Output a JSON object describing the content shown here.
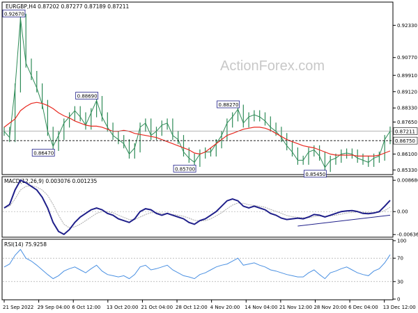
{
  "chart_data": [
    {
      "panel": "price",
      "type": "line",
      "title": "EURGBP,H4  0.87202 0.87277 0.87189 0.87211",
      "watermark": "ActionForex.com",
      "ylim": [
        0.8514,
        0.9342
      ],
      "y_ticks": [
        "0.92330",
        "0.90770",
        "0.89910",
        "0.89120",
        "0.88330",
        "0.87650",
        "0.86100",
        "0.85330"
      ],
      "current_price_label": "0.87211",
      "level_line_label": "0.86750",
      "annotations": [
        "0.92670",
        "0.88690",
        "0.86470",
        "0.85700",
        "0.88270",
        "0.85450"
      ],
      "x_tick_labels": [
        "21 Sep 2022",
        "29 Sep 04:00",
        "6 Oct 12:00",
        "13 Oct 20:00",
        "21 Oct 04:00",
        "28 Oct 12:00",
        "4 Nov 20:00",
        "14 Nov 04:00",
        "21 Nov 12:00",
        "28 Nov 20:00",
        "6 Dec 04:00",
        "13 Dec 12:00"
      ],
      "series": [
        {
          "name": "EURGBP,H4",
          "color": "#2e8b57",
          "style": "candles",
          "values": [
            0.872,
            0.869,
            0.893,
            0.9267,
            0.905,
            0.899,
            0.893,
            0.885,
            0.872,
            0.8647,
            0.87,
            0.876,
            0.879,
            0.882,
            0.879,
            0.875,
            0.881,
            0.8869,
            0.879,
            0.874,
            0.87,
            0.868,
            0.866,
            0.861,
            0.864,
            0.874,
            0.876,
            0.87,
            0.872,
            0.875,
            0.876,
            0.87,
            0.868,
            0.862,
            0.859,
            0.857,
            0.861,
            0.862,
            0.862,
            0.866,
            0.87,
            0.876,
            0.879,
            0.8827,
            0.876,
            0.879,
            0.88,
            0.879,
            0.877,
            0.874,
            0.872,
            0.869,
            0.865,
            0.862,
            0.858,
            0.858,
            0.862,
            0.863,
            0.86,
            0.8545,
            0.858,
            0.859,
            0.861,
            0.8615,
            0.861,
            0.859,
            0.858,
            0.857,
            0.859,
            0.86,
            0.868,
            0.8721
          ]
        },
        {
          "name": "moving average",
          "color": "#e8281f",
          "style": "line",
          "values": [
            0.874,
            0.876,
            0.878,
            0.882,
            0.884,
            0.8855,
            0.886,
            0.8855,
            0.8845,
            0.883,
            0.881,
            0.8795,
            0.8785,
            0.877,
            0.876,
            0.875,
            0.8745,
            0.8745,
            0.874,
            0.873,
            0.872,
            0.872,
            0.8725,
            0.872,
            0.871,
            0.8705,
            0.87,
            0.8695,
            0.869,
            0.868,
            0.867,
            0.866,
            0.865,
            0.864,
            0.863,
            0.8615,
            0.861,
            0.862,
            0.864,
            0.866,
            0.868,
            0.87,
            0.871,
            0.872,
            0.873,
            0.8735,
            0.874,
            0.874,
            0.8735,
            0.8725,
            0.871,
            0.8695,
            0.868,
            0.867,
            0.866,
            0.865,
            0.8645,
            0.864,
            0.863,
            0.862,
            0.861,
            0.8605,
            0.8605,
            0.8605,
            0.8605,
            0.86,
            0.86,
            0.86,
            0.86,
            0.8605,
            0.8615,
            0.8625
          ]
        }
      ]
    },
    {
      "panel": "macd",
      "type": "line",
      "title": "MACD(12,26,9) 0.003076 0.001235",
      "ylim": [
        -0.0069,
        0.0093
      ],
      "y_ticks": [
        "0.008686",
        "0.00",
        "-0.006366"
      ],
      "series": [
        {
          "name": "MACD",
          "color": "#1f1f8a",
          "values": [
            0.001,
            0.002,
            0.006,
            0.0087,
            0.008,
            0.007,
            0.006,
            0.004,
            0.001,
            -0.003,
            -0.0055,
            -0.0063,
            -0.005,
            -0.003,
            -0.0015,
            -0.0005,
            0.0005,
            0.001,
            0.0005,
            -0.0005,
            -0.001,
            -0.002,
            -0.0025,
            -0.003,
            -0.002,
            0.0,
            0.0008,
            0.0005,
            -0.0005,
            -0.001,
            -0.0005,
            -0.001,
            -0.0015,
            -0.002,
            -0.003,
            -0.0035,
            -0.0025,
            -0.002,
            -0.001,
            0.0,
            0.0015,
            0.003,
            0.0035,
            0.003,
            0.0015,
            0.001,
            0.0015,
            0.001,
            0.0005,
            -0.0005,
            -0.001,
            -0.0018,
            -0.0022,
            -0.002,
            -0.0018,
            -0.002,
            -0.0015,
            -0.0008,
            -0.001,
            -0.0015,
            -0.001,
            -0.0005,
            0.0,
            0.0002,
            0.0003,
            0.0,
            -0.0005,
            -0.0006,
            -0.0004,
            0.0,
            0.0015,
            0.0031
          ]
        },
        {
          "name": "Signal",
          "color": "#aaaaaa",
          "values": [
            0.001,
            0.0015,
            0.0035,
            0.006,
            0.007,
            0.0072,
            0.0068,
            0.006,
            0.0045,
            0.002,
            -0.001,
            -0.0035,
            -0.0045,
            -0.0042,
            -0.0035,
            -0.0025,
            -0.0015,
            -0.0005,
            0.0,
            0.0,
            -0.0003,
            -0.001,
            -0.0016,
            -0.0022,
            -0.0022,
            -0.0015,
            -0.0008,
            -0.0003,
            -0.0003,
            -0.0005,
            -0.0006,
            -0.0008,
            -0.001,
            -0.0013,
            -0.0018,
            -0.0024,
            -0.0026,
            -0.0025,
            -0.002,
            -0.0012,
            -0.0003,
            0.0008,
            0.0018,
            0.0024,
            0.0023,
            0.0019,
            0.0017,
            0.0015,
            0.0012,
            0.0006,
            0.0001,
            -0.0005,
            -0.0011,
            -0.0014,
            -0.0016,
            -0.0017,
            -0.0017,
            -0.0014,
            -0.0012,
            -0.0013,
            -0.0012,
            -0.001,
            -0.0007,
            -0.0004,
            -0.0002,
            -0.0001,
            -0.0002,
            -0.0003,
            -0.0003,
            -0.0002,
            0.0003,
            0.0012
          ]
        },
        {
          "name": "trendline",
          "color": "#1f1f8a",
          "x_index": [
            54,
            71
          ],
          "values": [
            -0.004,
            -0.001
          ]
        }
      ]
    },
    {
      "panel": "rsi",
      "type": "line",
      "title": "RSI(14) 75.9258",
      "ylim": [
        0,
        100
      ],
      "y_ticks": [
        "100",
        "70",
        "30",
        "0"
      ],
      "levels": [
        70,
        30
      ],
      "series": [
        {
          "name": "RSI(14)",
          "color": "#4a90e2",
          "values": [
            55,
            60,
            75,
            85,
            70,
            65,
            58,
            50,
            42,
            35,
            40,
            48,
            52,
            55,
            50,
            45,
            52,
            58,
            48,
            42,
            40,
            38,
            40,
            35,
            42,
            55,
            58,
            50,
            52,
            55,
            58,
            50,
            45,
            40,
            38,
            35,
            42,
            45,
            50,
            55,
            58,
            60,
            65,
            70,
            58,
            60,
            62,
            58,
            55,
            50,
            48,
            45,
            42,
            40,
            38,
            38,
            45,
            50,
            42,
            35,
            45,
            48,
            52,
            55,
            50,
            45,
            42,
            40,
            48,
            52,
            62,
            76
          ]
        }
      ]
    }
  ]
}
